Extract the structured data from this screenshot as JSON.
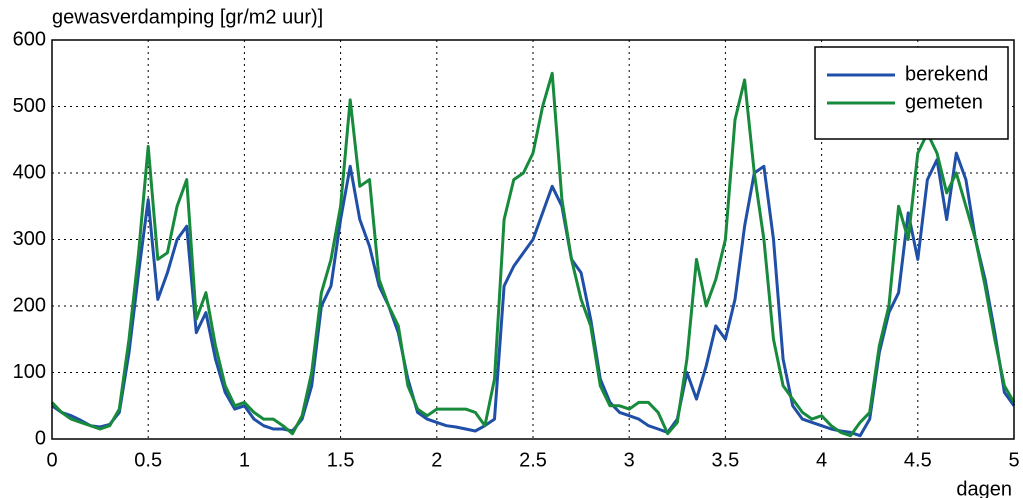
{
  "chart_data": {
    "type": "line",
    "title": "gewasverdamping [gr/m2 uur)]",
    "x_label": "dagen",
    "x": [
      0,
      0.05,
      0.1,
      0.15,
      0.2,
      0.25,
      0.3,
      0.35,
      0.4,
      0.45,
      0.5,
      0.55,
      0.6,
      0.65,
      0.7,
      0.75,
      0.8,
      0.85,
      0.9,
      0.95,
      1,
      1.05,
      1.1,
      1.15,
      1.2,
      1.25,
      1.3,
      1.35,
      1.4,
      1.45,
      1.5,
      1.55,
      1.6,
      1.65,
      1.7,
      1.75,
      1.8,
      1.85,
      1.9,
      1.95,
      2,
      2.05,
      2.1,
      2.15,
      2.2,
      2.25,
      2.3,
      2.35,
      2.4,
      2.45,
      2.5,
      2.55,
      2.6,
      2.65,
      2.7,
      2.75,
      2.8,
      2.85,
      2.9,
      2.95,
      3,
      3.05,
      3.1,
      3.15,
      3.2,
      3.25,
      3.3,
      3.35,
      3.4,
      3.45,
      3.5,
      3.55,
      3.6,
      3.65,
      3.7,
      3.75,
      3.8,
      3.85,
      3.9,
      3.95,
      4,
      4.05,
      4.1,
      4.15,
      4.2,
      4.25,
      4.3,
      4.35,
      4.4,
      4.45,
      4.5,
      4.55,
      4.6,
      4.65,
      4.7,
      4.75,
      4.8,
      4.85,
      4.9,
      4.95,
      5
    ],
    "series": [
      {
        "name": "berekend",
        "color": "#1f4fa6",
        "values": [
          50,
          40,
          35,
          28,
          20,
          18,
          22,
          40,
          130,
          250,
          360,
          210,
          250,
          300,
          320,
          160,
          190,
          120,
          70,
          45,
          50,
          30,
          20,
          15,
          15,
          12,
          30,
          80,
          200,
          230,
          330,
          410,
          330,
          290,
          230,
          200,
          160,
          90,
          40,
          30,
          25,
          20,
          18,
          15,
          12,
          20,
          30,
          230,
          260,
          280,
          300,
          340,
          380,
          350,
          270,
          250,
          180,
          90,
          55,
          40,
          35,
          30,
          20,
          15,
          10,
          30,
          100,
          60,
          110,
          170,
          150,
          210,
          320,
          400,
          410,
          300,
          120,
          50,
          30,
          25,
          20,
          15,
          12,
          10,
          5,
          30,
          130,
          190,
          220,
          340,
          270,
          390,
          420,
          330,
          430,
          390,
          300,
          240,
          160,
          70,
          50
        ]
      },
      {
        "name": "gemeten",
        "color": "#178a3c",
        "values": [
          55,
          40,
          30,
          25,
          20,
          15,
          20,
          45,
          150,
          280,
          440,
          270,
          280,
          350,
          390,
          180,
          220,
          140,
          80,
          50,
          55,
          40,
          30,
          30,
          20,
          8,
          35,
          100,
          220,
          270,
          350,
          510,
          380,
          390,
          240,
          200,
          170,
          80,
          45,
          35,
          45,
          45,
          45,
          45,
          40,
          20,
          90,
          330,
          390,
          400,
          430,
          500,
          550,
          360,
          270,
          210,
          170,
          80,
          50,
          50,
          45,
          55,
          55,
          40,
          8,
          25,
          120,
          270,
          200,
          240,
          300,
          480,
          540,
          400,
          300,
          150,
          80,
          60,
          40,
          30,
          35,
          20,
          10,
          5,
          25,
          40,
          140,
          200,
          350,
          300,
          430,
          460,
          430,
          370,
          400,
          350,
          300,
          230,
          150,
          80,
          55
        ]
      }
    ],
    "xlim": [
      0,
      5
    ],
    "xticks": [
      0,
      0.5,
      1,
      1.5,
      2,
      2.5,
      3,
      3.5,
      4,
      4.5,
      5
    ],
    "ylim": [
      0,
      600
    ],
    "yticks": [
      0,
      100,
      200,
      300,
      400,
      500,
      600
    ],
    "grid": true,
    "legend": "upper right"
  }
}
